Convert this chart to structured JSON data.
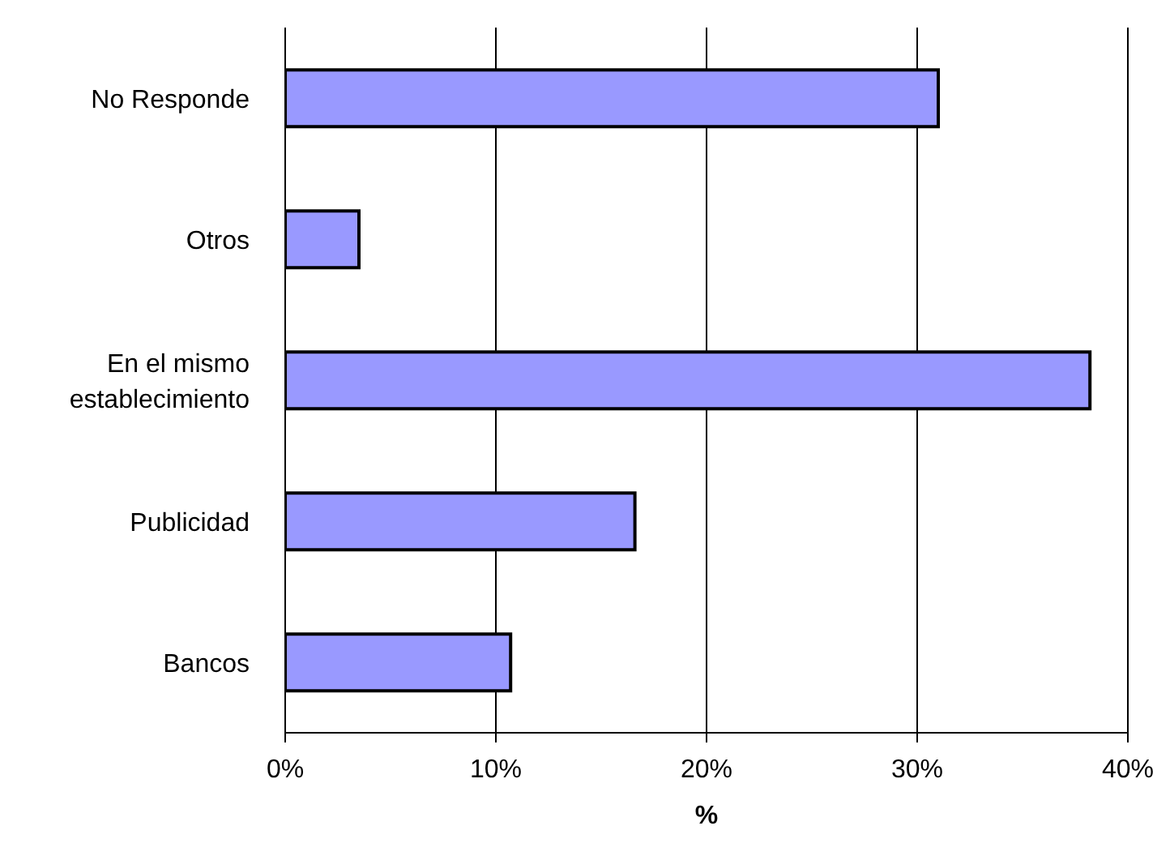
{
  "chart_data": {
    "type": "bar",
    "orientation": "horizontal",
    "categories": [
      "No Responde",
      "Otros",
      "En el mismo establecimiento",
      "Publicidad",
      "Bancos"
    ],
    "values": [
      31.0,
      3.5,
      38.2,
      16.6,
      10.7
    ],
    "color": "#9999ff",
    "xlabel": "%",
    "xlim": [
      0,
      40
    ],
    "xticks": [
      {
        "value": 0,
        "label": "0%"
      },
      {
        "value": 10,
        "label": "10%"
      },
      {
        "value": 20,
        "label": "20%"
      },
      {
        "value": 30,
        "label": "30%"
      },
      {
        "value": 40,
        "label": "40%"
      }
    ],
    "grid": "x",
    "legend": false
  }
}
